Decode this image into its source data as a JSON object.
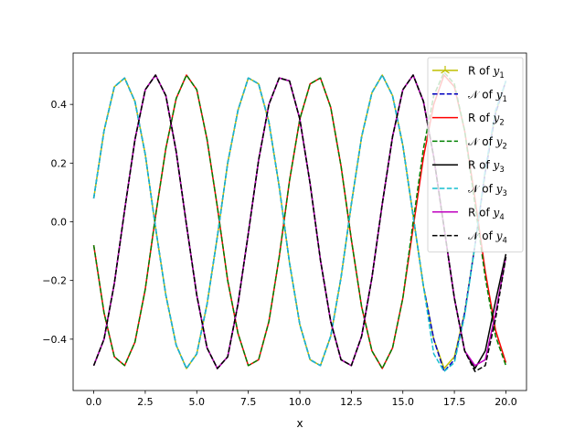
{
  "chart_data": {
    "type": "line",
    "xlabel": "x",
    "ylabel": "",
    "title": "",
    "xlim": [
      -1,
      21
    ],
    "ylim": [
      -0.575,
      0.575
    ],
    "xticks": [
      0,
      2.5,
      5,
      7.5,
      10,
      12.5,
      15,
      17.5,
      20
    ],
    "xtick_labels": [
      "0.0",
      "2.5",
      "5.0",
      "7.5",
      "10.0",
      "12.5",
      "15.0",
      "17.5",
      "20.0"
    ],
    "yticks": [
      -0.4,
      -0.2,
      0.0,
      0.2,
      0.4
    ],
    "ytick_labels": [
      "−0.4",
      "−0.2",
      "0.0",
      "0.2",
      "0.4"
    ],
    "grid": false,
    "legend_position": "top-right",
    "x": [
      0,
      0.5,
      1,
      1.5,
      2,
      2.5,
      3,
      3.5,
      4,
      4.5,
      5,
      5.5,
      6,
      6.5,
      7,
      7.5,
      8,
      8.5,
      9,
      9.5,
      10,
      10.5,
      11,
      11.5,
      12,
      12.5,
      13,
      13.5,
      14,
      14.5,
      15,
      15.5,
      16,
      16.5,
      17,
      17.5,
      18,
      18.5,
      19,
      19.5,
      20
    ],
    "series": [
      {
        "name": "R of y1",
        "label_base": "R of ",
        "label_var": "y",
        "label_sub": "1",
        "color": "#bfbf00",
        "dash": "solid",
        "marker": "tri",
        "values": [
          0.08,
          0.31,
          0.46,
          0.49,
          0.41,
          0.23,
          -0.02,
          -0.25,
          -0.42,
          -0.5,
          -0.45,
          -0.28,
          -0.05,
          0.2,
          0.38,
          0.49,
          0.47,
          0.34,
          0.12,
          -0.14,
          -0.35,
          -0.47,
          -0.49,
          -0.39,
          -0.19,
          0.06,
          0.29,
          0.44,
          0.5,
          0.43,
          0.26,
          0.02,
          -0.22,
          -0.4,
          -0.5,
          -0.46,
          -0.31,
          -0.08,
          0.17,
          0.37,
          0.48
        ]
      },
      {
        "name": "𝒩 of y1",
        "label_base": "𝒩 of ",
        "label_var": "y",
        "label_sub": "1",
        "color": "#0000bf",
        "dash": "dashed",
        "marker": "",
        "values": [
          0.08,
          0.31,
          0.46,
          0.49,
          0.41,
          0.23,
          -0.02,
          -0.25,
          -0.42,
          -0.5,
          -0.45,
          -0.28,
          -0.05,
          0.2,
          0.38,
          0.49,
          0.47,
          0.34,
          0.12,
          -0.14,
          -0.35,
          -0.47,
          -0.49,
          -0.39,
          -0.19,
          0.06,
          0.29,
          0.44,
          0.5,
          0.43,
          0.26,
          0.02,
          -0.22,
          -0.4,
          -0.51,
          -0.47,
          -0.31,
          -0.08,
          0.17,
          0.37,
          0.48
        ]
      },
      {
        "name": "R of y2",
        "label_base": "R of ",
        "label_var": "y",
        "label_sub": "2",
        "color": "#ff0000",
        "dash": "solid",
        "marker": "",
        "values": [
          -0.08,
          -0.31,
          -0.46,
          -0.49,
          -0.41,
          -0.23,
          0.02,
          0.25,
          0.42,
          0.5,
          0.45,
          0.28,
          0.05,
          -0.2,
          -0.38,
          -0.49,
          -0.47,
          -0.34,
          -0.12,
          0.14,
          0.35,
          0.47,
          0.49,
          0.39,
          0.19,
          -0.06,
          -0.29,
          -0.44,
          -0.5,
          -0.43,
          -0.26,
          -0.02,
          0.22,
          0.4,
          0.5,
          0.46,
          0.31,
          0.08,
          -0.17,
          -0.37,
          -0.48
        ]
      },
      {
        "name": "𝒩 of y2",
        "label_base": "𝒩 of ",
        "label_var": "y",
        "label_sub": "2",
        "color": "#008000",
        "dash": "dashed",
        "marker": "",
        "values": [
          -0.08,
          -0.31,
          -0.46,
          -0.49,
          -0.41,
          -0.23,
          0.02,
          0.25,
          0.42,
          0.5,
          0.45,
          0.28,
          0.05,
          -0.2,
          -0.38,
          -0.49,
          -0.47,
          -0.34,
          -0.12,
          0.14,
          0.35,
          0.47,
          0.49,
          0.39,
          0.19,
          -0.06,
          -0.29,
          -0.44,
          -0.5,
          -0.43,
          -0.26,
          0.0,
          0.25,
          0.43,
          0.51,
          0.47,
          0.31,
          0.06,
          -0.19,
          -0.39,
          -0.49
        ]
      },
      {
        "name": "R of y3",
        "label_base": "R of ",
        "label_var": "y",
        "label_sub": "3",
        "color": "#000000",
        "dash": "solid",
        "marker": "",
        "values": [
          -0.49,
          -0.4,
          -0.21,
          0.04,
          0.28,
          0.45,
          0.5,
          0.43,
          0.24,
          -0.01,
          -0.25,
          -0.43,
          -0.5,
          -0.46,
          -0.28,
          -0.04,
          0.21,
          0.4,
          0.49,
          0.48,
          0.35,
          0.13,
          -0.13,
          -0.34,
          -0.47,
          -0.49,
          -0.39,
          -0.19,
          0.06,
          0.29,
          0.45,
          0.5,
          0.41,
          0.22,
          -0.02,
          -0.26,
          -0.44,
          -0.5,
          -0.44,
          -0.27,
          -0.11
        ]
      },
      {
        "name": "𝒩 of y3",
        "label_base": "𝒩 of ",
        "label_var": "y",
        "label_sub": "3",
        "color": "#17becf",
        "dash": "dashed",
        "marker": "",
        "values": [
          0.08,
          0.31,
          0.46,
          0.49,
          0.41,
          0.23,
          -0.02,
          -0.25,
          -0.42,
          -0.5,
          -0.45,
          -0.28,
          -0.05,
          0.2,
          0.38,
          0.49,
          0.47,
          0.34,
          0.12,
          -0.14,
          -0.35,
          -0.47,
          -0.49,
          -0.39,
          -0.19,
          0.06,
          0.29,
          0.44,
          0.5,
          0.43,
          0.26,
          0.02,
          -0.22,
          -0.45,
          -0.51,
          -0.48,
          -0.32,
          -0.08,
          0.18,
          0.38,
          0.48
        ]
      },
      {
        "name": "R of y4",
        "label_base": "R of ",
        "label_var": "y",
        "label_sub": "4",
        "color": "#bf00bf",
        "dash": "solid",
        "marker": "",
        "values": [
          -0.49,
          -0.4,
          -0.21,
          0.04,
          0.28,
          0.45,
          0.5,
          0.43,
          0.24,
          -0.01,
          -0.25,
          -0.43,
          -0.5,
          -0.46,
          -0.28,
          -0.04,
          0.21,
          0.4,
          0.49,
          0.48,
          0.35,
          0.13,
          -0.13,
          -0.34,
          -0.47,
          -0.49,
          -0.39,
          -0.19,
          0.06,
          0.29,
          0.45,
          0.5,
          0.41,
          0.22,
          -0.02,
          -0.26,
          -0.44,
          -0.49,
          -0.47,
          -0.31,
          -0.12
        ]
      },
      {
        "name": "𝒩 of y4",
        "label_base": "𝒩 of ",
        "label_var": "y",
        "label_sub": "4",
        "color": "#000000",
        "dash": "dashed",
        "marker": "",
        "values": [
          -0.49,
          -0.4,
          -0.21,
          0.04,
          0.28,
          0.45,
          0.5,
          0.43,
          0.24,
          -0.01,
          -0.25,
          -0.43,
          -0.5,
          -0.46,
          -0.28,
          -0.04,
          0.21,
          0.4,
          0.49,
          0.48,
          0.35,
          0.13,
          -0.13,
          -0.34,
          -0.47,
          -0.49,
          -0.39,
          -0.19,
          0.06,
          0.29,
          0.45,
          0.5,
          0.41,
          0.22,
          -0.02,
          -0.26,
          -0.44,
          -0.51,
          -0.49,
          -0.33,
          -0.12
        ]
      }
    ]
  }
}
